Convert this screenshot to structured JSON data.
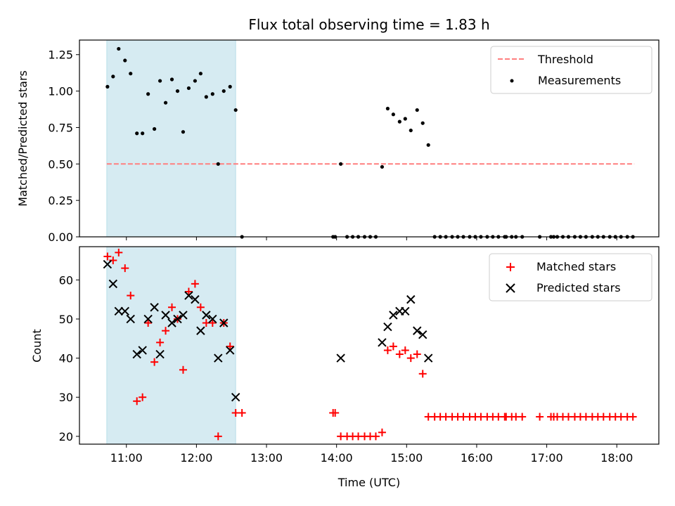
{
  "chart_data": [
    {
      "type": "scatter",
      "title": "Flux total observing time = 1.83 h",
      "xlabel": "",
      "ylabel": "Matched/Predicted stars",
      "xlim": [
        10.33,
        18.6
      ],
      "ylim": [
        0,
        1.35
      ],
      "yticks": [
        0.0,
        0.25,
        0.5,
        0.75,
        1.0,
        1.25
      ],
      "ytick_labels": [
        "0.00",
        "0.25",
        "0.50",
        "0.75",
        "1.00",
        "1.25"
      ],
      "highlight_span": [
        10.72,
        12.56
      ],
      "highlight_color": "#add8e6",
      "threshold": {
        "name": "Threshold",
        "value": 0.5,
        "x_range": [
          10.72,
          18.25
        ],
        "color": "#ff7f7f",
        "style": "dashed"
      },
      "legend": {
        "placement": "upper right",
        "entries": [
          "Threshold",
          "Measurements"
        ]
      },
      "series": [
        {
          "name": "Measurements",
          "marker": "dot",
          "color": "#000000",
          "points": [
            [
              10.73,
              1.03
            ],
            [
              10.81,
              1.1
            ],
            [
              10.89,
              1.29
            ],
            [
              10.98,
              1.21
            ],
            [
              11.06,
              1.12
            ],
            [
              11.15,
              0.71
            ],
            [
              11.23,
              0.71
            ],
            [
              11.31,
              0.98
            ],
            [
              11.4,
              0.74
            ],
            [
              11.48,
              1.07
            ],
            [
              11.56,
              0.92
            ],
            [
              11.65,
              1.08
            ],
            [
              11.73,
              1.0
            ],
            [
              11.81,
              0.72
            ],
            [
              11.89,
              1.02
            ],
            [
              11.98,
              1.07
            ],
            [
              12.06,
              1.12
            ],
            [
              12.14,
              0.96
            ],
            [
              12.23,
              0.98
            ],
            [
              12.31,
              0.5
            ],
            [
              12.39,
              1.0
            ],
            [
              12.48,
              1.03
            ],
            [
              12.56,
              0.87
            ],
            [
              12.65,
              0.0
            ],
            [
              13.95,
              0.0
            ],
            [
              13.98,
              0.0
            ],
            [
              14.06,
              0.5
            ],
            [
              14.15,
              0.0
            ],
            [
              14.23,
              0.0
            ],
            [
              14.31,
              0.0
            ],
            [
              14.4,
              0.0
            ],
            [
              14.48,
              0.0
            ],
            [
              14.56,
              0.0
            ],
            [
              14.65,
              0.48
            ],
            [
              14.73,
              0.88
            ],
            [
              14.81,
              0.84
            ],
            [
              14.9,
              0.79
            ],
            [
              14.98,
              0.81
            ],
            [
              15.06,
              0.73
            ],
            [
              15.15,
              0.87
            ],
            [
              15.23,
              0.78
            ],
            [
              15.31,
              0.63
            ],
            [
              15.4,
              0.0
            ],
            [
              15.48,
              0.0
            ],
            [
              15.56,
              0.0
            ],
            [
              15.65,
              0.0
            ],
            [
              15.73,
              0.0
            ],
            [
              15.81,
              0.0
            ],
            [
              15.9,
              0.0
            ],
            [
              15.98,
              0.0
            ],
            [
              16.06,
              0.0
            ],
            [
              16.15,
              0.0
            ],
            [
              16.23,
              0.0
            ],
            [
              16.31,
              0.0
            ],
            [
              16.4,
              0.0
            ],
            [
              16.42,
              0.0
            ],
            [
              16.5,
              0.0
            ],
            [
              16.56,
              0.0
            ],
            [
              16.65,
              0.0
            ],
            [
              16.9,
              0.0
            ],
            [
              17.06,
              0.0
            ],
            [
              17.1,
              0.0
            ],
            [
              17.15,
              0.0
            ],
            [
              17.23,
              0.0
            ],
            [
              17.31,
              0.0
            ],
            [
              17.4,
              0.0
            ],
            [
              17.48,
              0.0
            ],
            [
              17.56,
              0.0
            ],
            [
              17.65,
              0.0
            ],
            [
              17.73,
              0.0
            ],
            [
              17.81,
              0.0
            ],
            [
              17.9,
              0.0
            ],
            [
              17.98,
              0.0
            ],
            [
              18.06,
              0.0
            ],
            [
              18.15,
              0.0
            ],
            [
              18.23,
              0.0
            ]
          ]
        }
      ]
    },
    {
      "type": "scatter",
      "title": "",
      "xlabel": "Time (UTC)",
      "ylabel": "Count",
      "xlim": [
        10.33,
        18.6
      ],
      "ylim": [
        18,
        68.5
      ],
      "yticks": [
        20,
        30,
        40,
        50,
        60
      ],
      "ytick_labels": [
        "20",
        "30",
        "40",
        "50",
        "60"
      ],
      "xticks": [
        11,
        12,
        13,
        14,
        15,
        16,
        17,
        18
      ],
      "xtick_labels": [
        "11:00",
        "12:00",
        "13:00",
        "14:00",
        "15:00",
        "16:00",
        "17:00",
        "18:00"
      ],
      "highlight_span": [
        10.72,
        12.56
      ],
      "highlight_color": "#add8e6",
      "legend": {
        "placement": "upper right",
        "entries": [
          "Matched stars",
          "Predicted stars"
        ]
      },
      "series": [
        {
          "name": "Matched stars",
          "marker": "plus",
          "color": "#ff0000",
          "points": [
            [
              10.73,
              66
            ],
            [
              10.81,
              65
            ],
            [
              10.89,
              67
            ],
            [
              10.98,
              63
            ],
            [
              11.06,
              56
            ],
            [
              11.15,
              29
            ],
            [
              11.23,
              30
            ],
            [
              11.31,
              49
            ],
            [
              11.4,
              39
            ],
            [
              11.48,
              44
            ],
            [
              11.56,
              47
            ],
            [
              11.65,
              53
            ],
            [
              11.73,
              50
            ],
            [
              11.81,
              37
            ],
            [
              11.89,
              57
            ],
            [
              11.98,
              59
            ],
            [
              12.06,
              53
            ],
            [
              12.14,
              49
            ],
            [
              12.23,
              49
            ],
            [
              12.31,
              20
            ],
            [
              12.39,
              49
            ],
            [
              12.48,
              43
            ],
            [
              12.56,
              26
            ],
            [
              12.65,
              26
            ],
            [
              13.95,
              26
            ],
            [
              13.98,
              26
            ],
            [
              14.06,
              20
            ],
            [
              14.15,
              20
            ],
            [
              14.23,
              20
            ],
            [
              14.31,
              20
            ],
            [
              14.4,
              20
            ],
            [
              14.48,
              20
            ],
            [
              14.56,
              20
            ],
            [
              14.65,
              21
            ],
            [
              14.73,
              42
            ],
            [
              14.81,
              43
            ],
            [
              14.9,
              41
            ],
            [
              14.98,
              42
            ],
            [
              15.06,
              40
            ],
            [
              15.15,
              41
            ],
            [
              15.23,
              36
            ],
            [
              15.31,
              25
            ],
            [
              15.4,
              25
            ],
            [
              15.48,
              25
            ],
            [
              15.56,
              25
            ],
            [
              15.65,
              25
            ],
            [
              15.73,
              25
            ],
            [
              15.81,
              25
            ],
            [
              15.9,
              25
            ],
            [
              15.98,
              25
            ],
            [
              16.06,
              25
            ],
            [
              16.15,
              25
            ],
            [
              16.23,
              25
            ],
            [
              16.31,
              25
            ],
            [
              16.4,
              25
            ],
            [
              16.42,
              25
            ],
            [
              16.5,
              25
            ],
            [
              16.56,
              25
            ],
            [
              16.65,
              25
            ],
            [
              16.9,
              25
            ],
            [
              17.06,
              25
            ],
            [
              17.1,
              25
            ],
            [
              17.15,
              25
            ],
            [
              17.23,
              25
            ],
            [
              17.31,
              25
            ],
            [
              17.4,
              25
            ],
            [
              17.48,
              25
            ],
            [
              17.56,
              25
            ],
            [
              17.65,
              25
            ],
            [
              17.73,
              25
            ],
            [
              17.81,
              25
            ],
            [
              17.9,
              25
            ],
            [
              17.98,
              25
            ],
            [
              18.06,
              25
            ],
            [
              18.15,
              25
            ],
            [
              18.23,
              25
            ]
          ]
        },
        {
          "name": "Predicted stars",
          "marker": "x",
          "color": "#000000",
          "points": [
            [
              10.73,
              64
            ],
            [
              10.81,
              59
            ],
            [
              10.89,
              52
            ],
            [
              10.98,
              52
            ],
            [
              11.06,
              50
            ],
            [
              11.15,
              41
            ],
            [
              11.23,
              42
            ],
            [
              11.31,
              50
            ],
            [
              11.4,
              53
            ],
            [
              11.48,
              41
            ],
            [
              11.56,
              51
            ],
            [
              11.65,
              49
            ],
            [
              11.73,
              50
            ],
            [
              11.81,
              51
            ],
            [
              11.89,
              56
            ],
            [
              11.98,
              55
            ],
            [
              12.06,
              47
            ],
            [
              12.14,
              51
            ],
            [
              12.23,
              50
            ],
            [
              12.31,
              40
            ],
            [
              12.39,
              49
            ],
            [
              12.48,
              42
            ],
            [
              12.56,
              30
            ],
            [
              14.06,
              40
            ],
            [
              14.65,
              44
            ],
            [
              14.73,
              48
            ],
            [
              14.81,
              51
            ],
            [
              14.9,
              52
            ],
            [
              14.98,
              52
            ],
            [
              15.06,
              55
            ],
            [
              15.15,
              47
            ],
            [
              15.23,
              46
            ],
            [
              15.31,
              40
            ]
          ]
        }
      ]
    }
  ]
}
